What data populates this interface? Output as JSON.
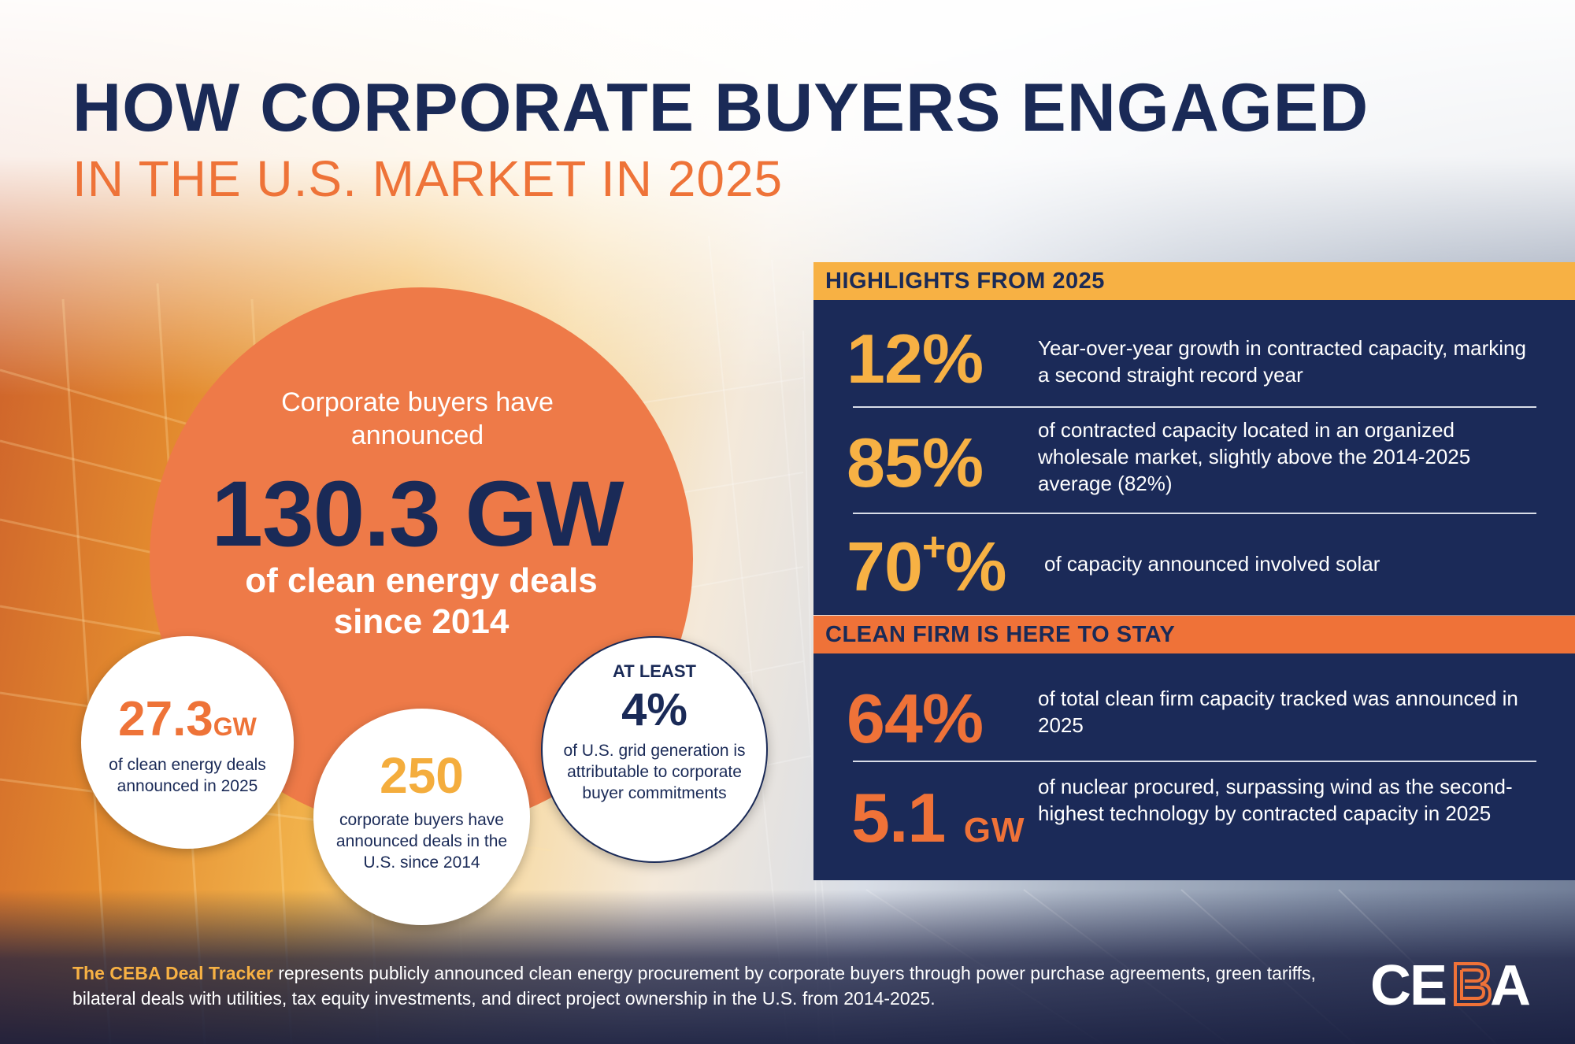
{
  "title": "HOW CORPORATE BUYERS ENGAGED",
  "subtitle": "IN THE U.S. MARKET IN 2025",
  "big_circle": {
    "intro": "Corporate buyers have announced",
    "value": "130.3 GW",
    "desc": "of clean energy deals since 2014"
  },
  "small_circles": {
    "gw_2025": {
      "value": "27.3",
      "unit": "GW",
      "desc": "of clean energy deals announced in 2025"
    },
    "buyers": {
      "value": "250",
      "desc": "corporate buyers have announced deals in the U.S. since 2014"
    },
    "grid": {
      "prefix": "AT LEAST",
      "value": "4%",
      "desc": "of U.S. grid generation is attributable to corporate buyer commitments"
    }
  },
  "highlights": {
    "heading": "HIGHLIGHTS FROM 2025",
    "items": [
      {
        "value": "12%",
        "desc": "Year-over-year growth in contracted capacity, marking a second straight record year"
      },
      {
        "value": "85%",
        "desc": "of contracted capacity located in an organized wholesale market, slightly above the 2014-2025 average (82%)"
      },
      {
        "value": "70",
        "sup": "+",
        "suffix": "%",
        "desc": "of capacity announced involved solar"
      }
    ]
  },
  "clean_firm": {
    "heading": "CLEAN FIRM IS HERE TO STAY",
    "items": [
      {
        "value": "64%",
        "desc": "of total clean firm capacity tracked was announced in 2025"
      },
      {
        "value": "5.1",
        "unit": "GW",
        "desc": "of nuclear procured, surpassing wind as the second-highest technology by contracted capacity in 2025"
      }
    ]
  },
  "footer": {
    "lead": "The CEBA Deal Tracker",
    "text": " represents publicly announced clean energy procurement by corporate buyers through power purchase agreements, green tariffs, bilateral deals with utilities, tax equity investments, and direct project ownership in the U.S. from 2014-2025."
  },
  "logo_text": "CEBA",
  "colors": {
    "navy": "#1b2a58",
    "orange": "#ef7238",
    "yellow": "#f7b144"
  }
}
